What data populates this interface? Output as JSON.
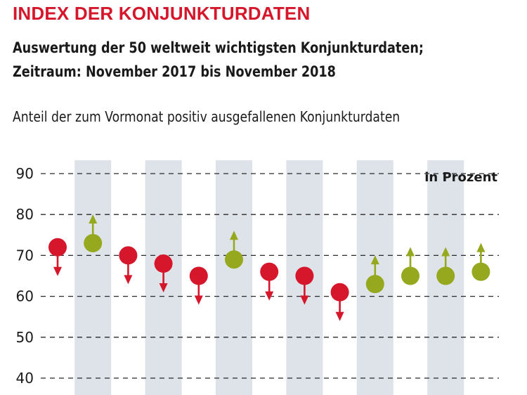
{
  "header": {
    "title": "INDEX DER KONJUNKTURDATEN",
    "subtitle_line1": "Auswertung der 50 weltweit wichtigsten Konjunkturdaten;",
    "subtitle_line2": "Zeitraum: November 2017 bis November 2018"
  },
  "colors": {
    "title": "#d5162b",
    "down": "#d5162b",
    "up": "#95a81e",
    "band": "#dde3e8",
    "grid": "#2a2a2a"
  },
  "chart_data": {
    "type": "scatter",
    "title": "Anteil der zum Vormonat positiv ausgefallenen Konjunkturdaten",
    "unit_label": "in Prozent",
    "ylim": [
      40,
      90
    ],
    "yticks": [
      90,
      80,
      70,
      60,
      50,
      40
    ],
    "grid": true,
    "grid_style": "dashed-horizontal",
    "alternating_column_bands": true,
    "x": [
      1,
      2,
      3,
      4,
      5,
      6,
      7,
      8,
      9,
      10,
      11,
      12,
      13
    ],
    "values": [
      72,
      73,
      70,
      68,
      65,
      69,
      66,
      65,
      61,
      63,
      65,
      65,
      66
    ],
    "direction": [
      "down",
      "up",
      "down",
      "down",
      "down",
      "up",
      "down",
      "down",
      "down",
      "up",
      "up",
      "up",
      "up"
    ]
  }
}
